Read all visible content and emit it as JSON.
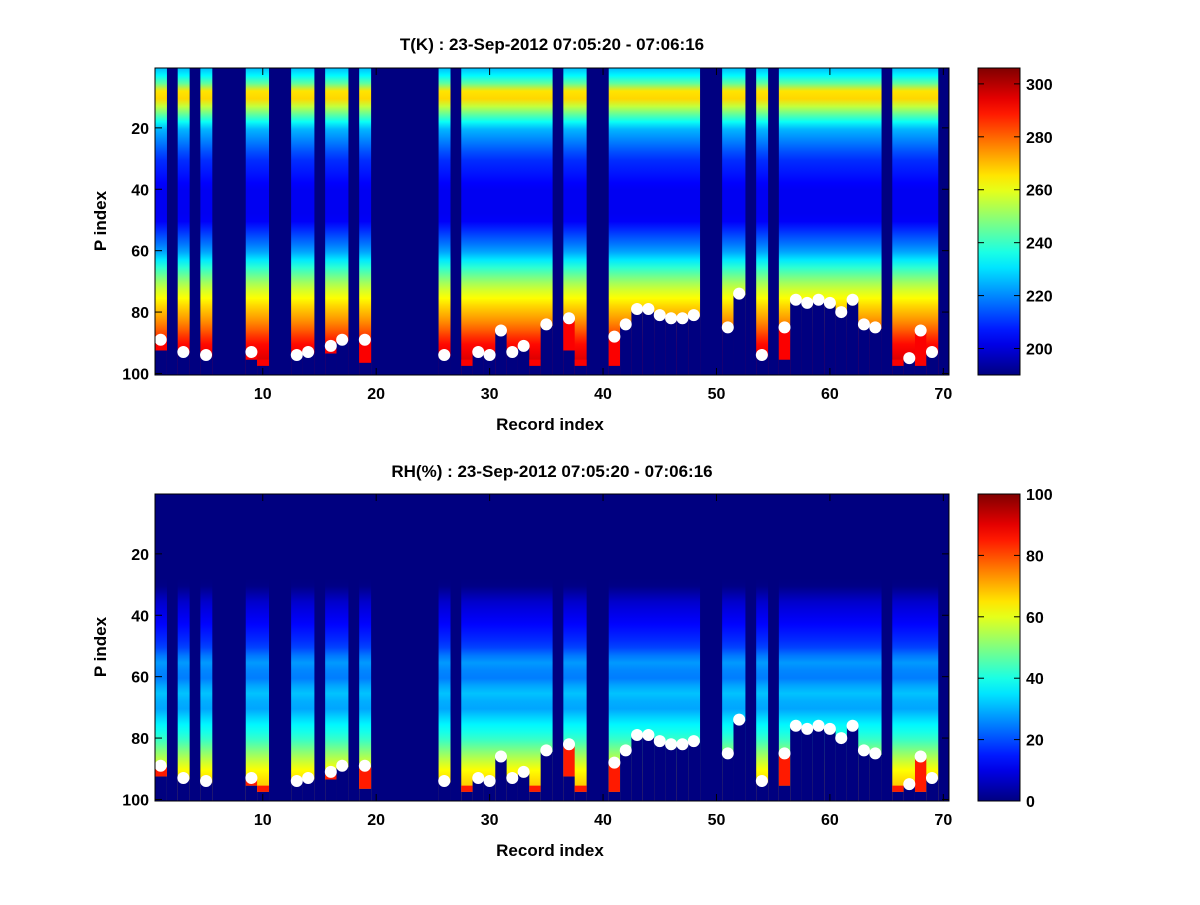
{
  "chart_data": [
    {
      "type": "heatmap",
      "title": "T(K) : 23-Sep-2012 07:05:20 - 07:06:16",
      "xlabel": "Record index",
      "ylabel": "P index",
      "xlim": [
        0.5,
        70.5
      ],
      "ylim": [
        0.5,
        100.5
      ],
      "y_reversed": true,
      "x_ticks": [
        10,
        20,
        30,
        40,
        50,
        60,
        70
      ],
      "y_ticks": [
        20,
        40,
        60,
        80,
        100
      ],
      "colormap": "jet",
      "clim": [
        190,
        306
      ],
      "colorbar_ticks": [
        200,
        220,
        240,
        260,
        280,
        300
      ],
      "background_value": 190,
      "profile": {
        "p": [
          1,
          5,
          9,
          12,
          20,
          30,
          40,
          50,
          60,
          66,
          72,
          78,
          84,
          90,
          96,
          100
        ],
        "v": [
          226,
          240,
          274,
          260,
          226,
          210,
          203,
          203,
          222,
          240,
          256,
          267,
          277,
          290,
          296,
          298
        ]
      },
      "near_surface_value": 292,
      "columns": [
        1,
        3,
        5,
        9,
        10,
        13,
        14,
        16,
        17,
        19,
        26,
        28,
        29,
        30,
        31,
        32,
        33,
        34,
        35,
        37,
        38,
        41,
        42,
        43,
        44,
        45,
        46,
        47,
        48,
        51,
        52,
        54,
        56,
        57,
        58,
        59,
        60,
        61,
        62,
        63,
        64,
        66,
        67,
        68,
        69
      ],
      "column_bottoms": [
        92,
        93,
        94,
        95,
        97,
        94,
        93,
        93,
        89,
        96,
        94,
        97,
        93,
        94,
        86,
        93,
        91,
        97,
        84,
        92,
        97,
        97,
        84,
        79,
        79,
        81,
        82,
        82,
        81,
        85,
        74,
        94,
        95,
        76,
        77,
        76,
        77,
        80,
        76,
        84,
        85,
        97,
        95,
        97,
        93
      ],
      "surface_points": {
        "x": [
          1,
          3,
          5,
          9,
          13,
          14,
          16,
          17,
          19,
          26,
          29,
          30,
          31,
          32,
          33,
          35,
          37,
          41,
          42,
          43,
          44,
          45,
          46,
          47,
          48,
          51,
          52,
          54,
          56,
          57,
          58,
          59,
          60,
          61,
          62,
          63,
          64,
          67,
          68,
          69
        ],
        "y": [
          89,
          93,
          94,
          93,
          94,
          93,
          91,
          89,
          89,
          94,
          93,
          94,
          86,
          93,
          91,
          84,
          82,
          88,
          84,
          79,
          79,
          81,
          82,
          82,
          81,
          85,
          74,
          94,
          85,
          76,
          77,
          76,
          77,
          80,
          76,
          84,
          85,
          95,
          86,
          93
        ]
      }
    },
    {
      "type": "heatmap",
      "title": "RH(%) : 23-Sep-2012 07:05:20 - 07:06:16",
      "xlabel": "Record index",
      "ylabel": "P index",
      "xlim": [
        0.5,
        70.5
      ],
      "ylim": [
        0.5,
        100.5
      ],
      "y_reversed": true,
      "x_ticks": [
        10,
        20,
        30,
        40,
        50,
        60,
        70
      ],
      "y_ticks": [
        20,
        40,
        60,
        80,
        100
      ],
      "colormap": "jet",
      "clim": [
        0,
        100
      ],
      "colorbar_ticks": [
        0,
        20,
        40,
        60,
        80,
        100
      ],
      "background_value": 0,
      "profile": {
        "p": [
          1,
          30,
          36,
          42,
          50,
          55,
          60,
          65,
          70,
          75,
          80,
          85,
          90,
          96,
          100
        ],
        "v": [
          0,
          0,
          8,
          12,
          18,
          28,
          24,
          32,
          28,
          36,
          42,
          52,
          62,
          68,
          70
        ]
      },
      "near_surface_value": 85,
      "surface_points": {
        "x": [
          1,
          3,
          5,
          9,
          13,
          14,
          16,
          17,
          19,
          26,
          29,
          30,
          31,
          32,
          33,
          35,
          37,
          41,
          42,
          43,
          44,
          45,
          46,
          47,
          48,
          51,
          52,
          54,
          56,
          57,
          58,
          59,
          60,
          61,
          62,
          63,
          64,
          67,
          68,
          69
        ],
        "y": [
          89,
          93,
          94,
          93,
          94,
          93,
          91,
          89,
          89,
          94,
          93,
          94,
          86,
          93,
          91,
          84,
          82,
          88,
          84,
          79,
          79,
          81,
          82,
          82,
          81,
          85,
          74,
          94,
          85,
          76,
          77,
          76,
          77,
          80,
          76,
          84,
          85,
          95,
          86,
          93
        ]
      }
    }
  ]
}
